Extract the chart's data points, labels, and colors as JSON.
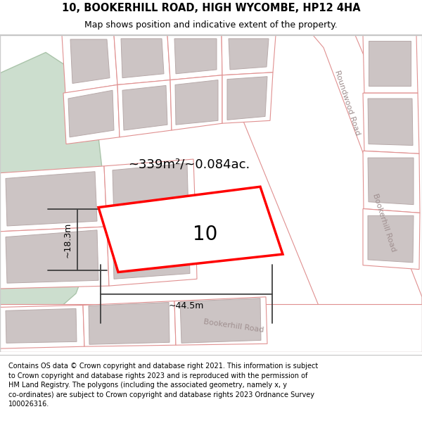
{
  "title_line1": "10, BOOKERHILL ROAD, HIGH WYCOMBE, HP12 4HA",
  "title_line2": "Map shows position and indicative extent of the property.",
  "footer_text": "Contains OS data © Crown copyright and database right 2021. This information is subject\nto Crown copyright and database rights 2023 and is reproduced with the permission of\nHM Land Registry. The polygons (including the associated geometry, namely x, y\nco-ordinates) are subject to Crown copyright and database rights 2023 Ordnance Survey\n100026316.",
  "map_bg": "#f5eeee",
  "road_fill": "#ffffff",
  "road_stroke": "#e09090",
  "building_fill": "#ccc4c4",
  "building_stroke": "#b8aaaa",
  "green_area_fill": "#ccdece",
  "green_area_stroke": "#aac4aa",
  "highlight_color": "#ff0000",
  "dim_color": "#404040",
  "road_label_color": "#a09090",
  "area_text": "~339m²/~0.084ac.",
  "number_text": "10",
  "dim_width": "~44.5m",
  "dim_height": "~18.3m",
  "road_label_roundwood": "Roundwood Road",
  "road_label_bookerhill_right": "Bookerhill Road",
  "road_label_bookerhill_bottom": "Bookerhill Road",
  "figsize": [
    6.0,
    6.25
  ],
  "dpi": 100
}
